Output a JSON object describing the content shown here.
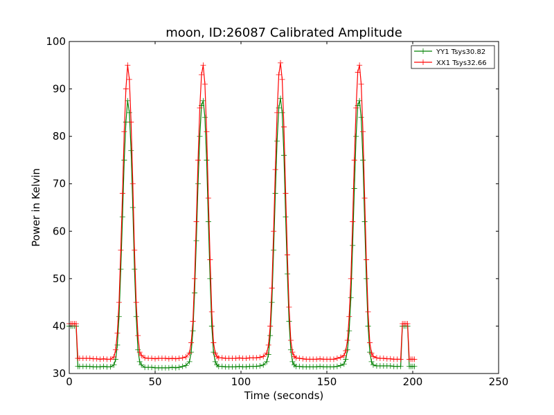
{
  "chart_data": {
    "type": "line",
    "title": "moon, ID:26087 Calibrated Amplitude",
    "xlabel": "Time (seconds)",
    "ylabel": "Power in Kelvin",
    "xlim": [
      0,
      250
    ],
    "ylim": [
      30,
      100
    ],
    "xticks": [
      0,
      50,
      100,
      150,
      200,
      250
    ],
    "yticks": [
      30,
      40,
      50,
      60,
      70,
      80,
      90,
      100
    ],
    "grid": false,
    "legend_position": "top-right",
    "marker": "plus",
    "series": [
      {
        "name": "YY1 Tsys30.82",
        "color": "#008000",
        "x": [
          0,
          1,
          2,
          3,
          4,
          5,
          6,
          8,
          10,
          12,
          14,
          16,
          18,
          20,
          22,
          24,
          26,
          27,
          28,
          29,
          30,
          31,
          32,
          33,
          34,
          35,
          36,
          37,
          38,
          39,
          40,
          41,
          42,
          44,
          46,
          48,
          50,
          52,
          54,
          56,
          58,
          60,
          62,
          64,
          66,
          68,
          70,
          71,
          72,
          73,
          74,
          75,
          76,
          77,
          78,
          79,
          80,
          81,
          82,
          83,
          84,
          85,
          86,
          87,
          89,
          91,
          93,
          95,
          97,
          99,
          101,
          103,
          105,
          107,
          109,
          111,
          113,
          115,
          116,
          117,
          118,
          119,
          120,
          121,
          122,
          123,
          124,
          125,
          126,
          127,
          128,
          129,
          130,
          131,
          132,
          134,
          136,
          138,
          140,
          142,
          144,
          146,
          148,
          150,
          152,
          154,
          156,
          158,
          160,
          161,
          162,
          163,
          164,
          165,
          166,
          167,
          168,
          169,
          170,
          171,
          172,
          173,
          174,
          175,
          176,
          177,
          179,
          181,
          183,
          185,
          187,
          189,
          191,
          193,
          194,
          195,
          196,
          197,
          198,
          199,
          200,
          201
        ],
        "y": [
          40.0,
          40.0,
          40.0,
          40.0,
          40.0,
          31.5,
          31.5,
          31.5,
          31.5,
          31.5,
          31.4,
          31.4,
          31.4,
          31.5,
          31.4,
          31.4,
          31.8,
          33.0,
          36.0,
          42.0,
          52.0,
          63.0,
          75.0,
          83.0,
          87.5,
          85.0,
          77.0,
          65.0,
          52.0,
          42.0,
          35.0,
          32.5,
          31.8,
          31.3,
          31.3,
          31.3,
          31.2,
          31.2,
          31.2,
          31.2,
          31.2,
          31.3,
          31.2,
          31.3,
          31.5,
          31.7,
          32.5,
          34.5,
          39.0,
          47.0,
          58.0,
          70.0,
          80.0,
          86.5,
          87.5,
          84.0,
          75.0,
          62.0,
          50.0,
          40.0,
          34.5,
          32.5,
          31.8,
          31.5,
          31.5,
          31.4,
          31.4,
          31.4,
          31.4,
          31.5,
          31.4,
          31.4,
          31.5,
          31.5,
          31.5,
          31.6,
          31.8,
          32.5,
          34.0,
          38.0,
          45.0,
          56.0,
          68.0,
          79.0,
          86.0,
          88.0,
          85.0,
          76.0,
          63.0,
          51.0,
          41.0,
          35.0,
          32.5,
          31.8,
          31.5,
          31.5,
          31.4,
          31.4,
          31.4,
          31.4,
          31.4,
          31.5,
          31.4,
          31.4,
          31.4,
          31.4,
          31.5,
          31.7,
          32.0,
          33.0,
          35.0,
          39.0,
          46.0,
          57.0,
          69.0,
          80.0,
          86.5,
          87.5,
          84.0,
          75.0,
          62.0,
          50.0,
          40.0,
          34.5,
          32.5,
          31.8,
          31.6,
          31.6,
          31.6,
          31.6,
          31.6,
          31.5,
          31.5,
          31.5,
          40.0,
          40.0,
          40.0,
          40.0,
          31.5,
          31.5,
          31.5,
          31.5
        ]
      },
      {
        "name": "XX1 Tsys32.66",
        "color": "#ff0000",
        "x": [
          0,
          1,
          2,
          3,
          4,
          5,
          6,
          8,
          10,
          12,
          14,
          16,
          18,
          20,
          22,
          24,
          26,
          27,
          28,
          29,
          30,
          31,
          32,
          33,
          34,
          35,
          36,
          37,
          38,
          39,
          40,
          41,
          42,
          44,
          46,
          48,
          50,
          52,
          54,
          56,
          58,
          60,
          62,
          64,
          66,
          68,
          70,
          71,
          72,
          73,
          74,
          75,
          76,
          77,
          78,
          79,
          80,
          81,
          82,
          83,
          84,
          85,
          86,
          87,
          89,
          91,
          93,
          95,
          97,
          99,
          101,
          103,
          105,
          107,
          109,
          111,
          113,
          115,
          116,
          117,
          118,
          119,
          120,
          121,
          122,
          123,
          124,
          125,
          126,
          127,
          128,
          129,
          130,
          131,
          132,
          134,
          136,
          138,
          140,
          142,
          144,
          146,
          148,
          150,
          152,
          154,
          156,
          158,
          160,
          161,
          162,
          163,
          164,
          165,
          166,
          167,
          168,
          169,
          170,
          171,
          172,
          173,
          174,
          175,
          176,
          177,
          179,
          181,
          183,
          185,
          187,
          189,
          191,
          193,
          194,
          195,
          196,
          197,
          198,
          199,
          200,
          201
        ],
        "y": [
          40.5,
          40.5,
          40.5,
          40.5,
          40.5,
          33.2,
          33.2,
          33.2,
          33.2,
          33.2,
          33.1,
          33.1,
          33.0,
          33.1,
          33.0,
          33.0,
          33.5,
          35.0,
          38.5,
          45.0,
          56.0,
          68.0,
          81.0,
          90.0,
          95.0,
          92.0,
          83.0,
          70.0,
          56.0,
          45.0,
          38.0,
          34.5,
          33.8,
          33.3,
          33.2,
          33.2,
          33.1,
          33.2,
          33.2,
          33.2,
          33.1,
          33.2,
          33.1,
          33.2,
          33.3,
          33.5,
          34.3,
          36.5,
          41.0,
          50.0,
          62.0,
          75.0,
          86.0,
          93.0,
          95.0,
          91.0,
          81.0,
          67.0,
          54.0,
          43.0,
          36.5,
          34.3,
          33.6,
          33.3,
          33.3,
          33.2,
          33.2,
          33.2,
          33.2,
          33.3,
          33.2,
          33.2,
          33.3,
          33.3,
          33.3,
          33.4,
          33.6,
          34.3,
          36.0,
          40.0,
          48.0,
          60.0,
          73.0,
          85.0,
          93.0,
          95.5,
          92.0,
          82.0,
          68.0,
          55.0,
          44.0,
          37.0,
          34.5,
          33.6,
          33.3,
          33.2,
          33.1,
          33.0,
          33.0,
          33.0,
          33.0,
          33.1,
          33.0,
          33.0,
          33.0,
          33.0,
          33.2,
          33.4,
          33.8,
          34.8,
          37.0,
          42.0,
          50.0,
          62.0,
          75.0,
          86.0,
          93.5,
          95.0,
          91.0,
          81.0,
          67.0,
          54.0,
          43.0,
          36.5,
          34.3,
          33.6,
          33.3,
          33.2,
          33.2,
          33.1,
          33.1,
          33.0,
          33.0,
          33.0,
          40.5,
          40.5,
          40.5,
          40.5,
          33.0,
          33.0,
          33.0,
          33.0
        ]
      }
    ]
  }
}
